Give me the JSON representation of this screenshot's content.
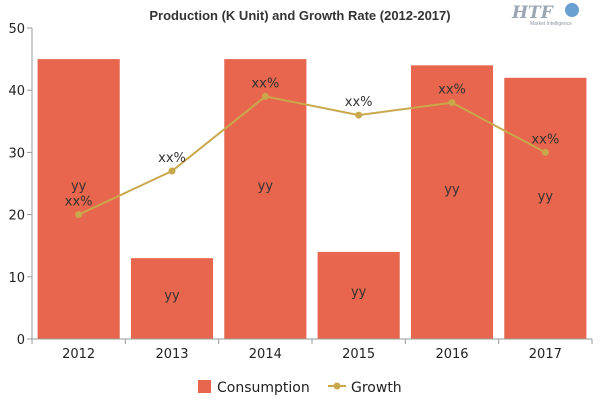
{
  "chart_data": {
    "type": "bar",
    "title": "Production (K Unit) and Growth Rate (2012-2017)",
    "categories": [
      "2012",
      "2013",
      "2014",
      "2015",
      "2016",
      "2017"
    ],
    "ylim": [
      0,
      50
    ],
    "yticks": [
      0,
      10,
      20,
      30,
      40,
      50
    ],
    "xlabel": "",
    "ylabel": "",
    "grid": false,
    "legend_position": "bottom",
    "series": [
      {
        "name": "Consumption",
        "kind": "bar",
        "color": "#e8664d",
        "values": [
          45,
          13,
          45,
          14,
          44,
          42
        ],
        "labels": [
          "yy",
          "yy",
          "yy",
          "yy",
          "yy",
          "yy"
        ]
      },
      {
        "name": "Growth",
        "kind": "line",
        "color": "#c9a84c",
        "values": [
          20,
          27,
          39,
          36,
          38,
          30
        ],
        "labels": [
          "xx%",
          "xx%",
          "xx%",
          "xx%",
          "xx%",
          "xx%"
        ]
      }
    ]
  },
  "logo": {
    "text": "HTF",
    "subtext": "Market Intelligence"
  }
}
